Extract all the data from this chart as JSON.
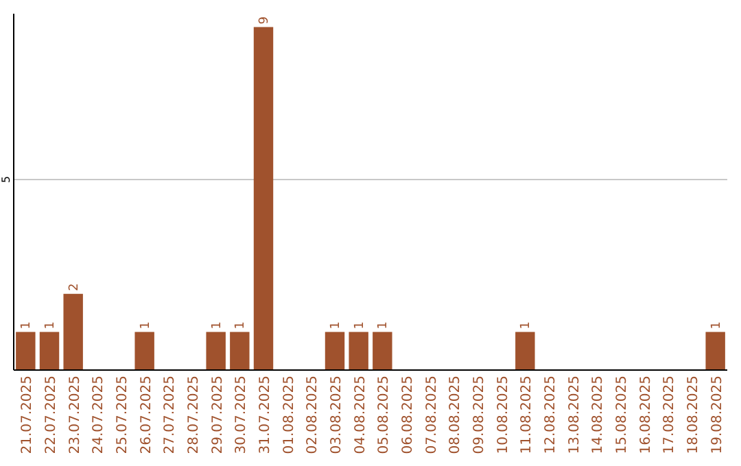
{
  "chart_data": {
    "type": "bar",
    "categories": [
      "21.07.2025",
      "22.07.2025",
      "23.07.2025",
      "24.07.2025",
      "25.07.2025",
      "26.07.2025",
      "27.07.2025",
      "28.07.2025",
      "29.07.2025",
      "30.07.2025",
      "31.07.2025",
      "01.08.2025",
      "02.08.2025",
      "03.08.2025",
      "04.08.2025",
      "05.08.2025",
      "06.08.2025",
      "07.08.2025",
      "08.08.2025",
      "09.08.2025",
      "10.08.2025",
      "11.08.2025",
      "12.08.2025",
      "13.08.2025",
      "14.08.2025",
      "15.08.2025",
      "16.08.2025",
      "17.08.2025",
      "18.08.2025",
      "19.08.2025"
    ],
    "values": [
      1,
      1,
      2,
      0,
      0,
      1,
      0,
      0,
      1,
      1,
      9,
      0,
      0,
      1,
      1,
      1,
      0,
      0,
      0,
      0,
      0,
      1,
      0,
      0,
      0,
      0,
      0,
      0,
      0,
      1
    ],
    "value_labels": [
      "1",
      "1",
      "2",
      null,
      null,
      "1",
      null,
      null,
      "1",
      "1",
      "9",
      null,
      null,
      "1",
      "1",
      "1",
      null,
      null,
      null,
      null,
      null,
      "1",
      null,
      null,
      null,
      null,
      null,
      null,
      null,
      "1"
    ],
    "color": "#a0522d",
    "ylim": [
      0,
      9.35
    ],
    "yticks": [
      5
    ],
    "grid": "y"
  }
}
